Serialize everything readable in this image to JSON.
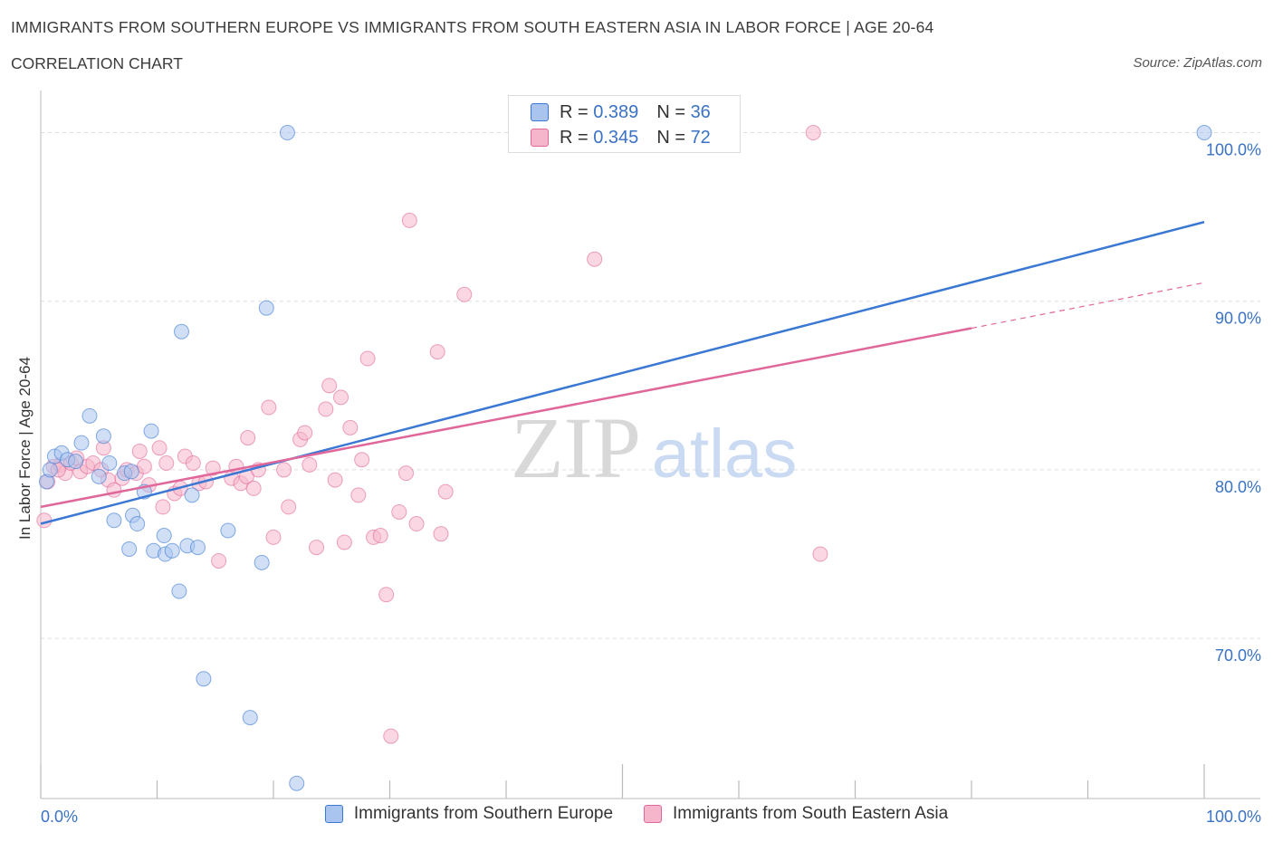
{
  "header": {
    "title": "IMMIGRANTS FROM SOUTHERN EUROPE VS IMMIGRANTS FROM SOUTH EASTERN ASIA IN LABOR FORCE | AGE 20-64",
    "subtitle": "CORRELATION CHART",
    "source": "Source: ZipAtlas.com"
  },
  "watermark": {
    "zip": "ZIP",
    "atlas": "atlas"
  },
  "colors": {
    "blue": "#3a78d4",
    "blue_fill": "#a9c5ef",
    "pink": "#e0679a",
    "pink_fill": "#f5b6cb",
    "axis_label": "#3a72c4",
    "grid": "#dddddd"
  },
  "legend": {
    "rows": [
      {
        "r_label": "R = ",
        "r_value": "0.389",
        "n_label": "N = ",
        "n_value": "36"
      },
      {
        "r_label": "R = ",
        "r_value": "0.345",
        "n_label": "N = ",
        "n_value": "72"
      }
    ]
  },
  "chart_data": {
    "type": "scatter",
    "title": "IMMIGRANTS FROM SOUTHERN EUROPE VS IMMIGRANTS FROM SOUTH EASTERN ASIA IN LABOR FORCE | AGE 20-64",
    "subtitle": "CORRELATION CHART",
    "xlabel": "",
    "ylabel": "In Labor Force | Age 20-64",
    "xlim": [
      0,
      100
    ],
    "ylim": [
      60.5,
      102.5
    ],
    "x_tick_labels": [
      "0.0%",
      "100.0%"
    ],
    "y_ticks": [
      70,
      80,
      90,
      100
    ],
    "y_tick_labels": [
      "70.0%",
      "80.0%",
      "90.0%",
      "100.0%"
    ],
    "grid": true,
    "legend_position": "top-center",
    "series": [
      {
        "name": "Immigrants from Southern Europe",
        "R": 0.389,
        "N": 36,
        "trend": {
          "x0": 0,
          "y0": 76.8,
          "x1": 100,
          "y1": 94.7
        },
        "points": [
          [
            0.5,
            79.3
          ],
          [
            0.8,
            80.0
          ],
          [
            1.2,
            80.8
          ],
          [
            1.8,
            81.0
          ],
          [
            2.3,
            80.6
          ],
          [
            3.0,
            80.5
          ],
          [
            3.5,
            81.6
          ],
          [
            4.2,
            83.2
          ],
          [
            5.0,
            79.6
          ],
          [
            5.4,
            82.0
          ],
          [
            5.9,
            80.4
          ],
          [
            6.3,
            77.0
          ],
          [
            7.2,
            79.8
          ],
          [
            7.6,
            75.3
          ],
          [
            7.8,
            79.9
          ],
          [
            7.9,
            77.3
          ],
          [
            8.3,
            76.8
          ],
          [
            8.9,
            78.7
          ],
          [
            9.5,
            82.3
          ],
          [
            9.7,
            75.2
          ],
          [
            10.6,
            76.1
          ],
          [
            10.7,
            75.0
          ],
          [
            11.3,
            75.2
          ],
          [
            11.9,
            72.8
          ],
          [
            12.1,
            88.2
          ],
          [
            12.6,
            75.5
          ],
          [
            13.0,
            78.5
          ],
          [
            13.5,
            75.4
          ],
          [
            14.0,
            67.6
          ],
          [
            16.1,
            76.4
          ],
          [
            18.0,
            65.3
          ],
          [
            19.0,
            74.5
          ],
          [
            19.4,
            89.6
          ],
          [
            21.2,
            100.0
          ],
          [
            22.0,
            61.4
          ],
          [
            100.0,
            100.0
          ]
        ]
      },
      {
        "name": "Immigrants from South Eastern Asia",
        "R": 0.345,
        "N": 72,
        "trend": {
          "x0": 0,
          "y0": 77.8,
          "x1": 80,
          "y1": 88.4
        },
        "trend_extension": {
          "x0": 80,
          "y0": 88.4,
          "x1": 100,
          "y1": 91.1
        },
        "points": [
          [
            0.3,
            77.0
          ],
          [
            0.6,
            79.3
          ],
          [
            1.1,
            80.2
          ],
          [
            1.7,
            80.3
          ],
          [
            2.1,
            79.8
          ],
          [
            2.6,
            80.4
          ],
          [
            3.1,
            80.7
          ],
          [
            3.4,
            79.9
          ],
          [
            4.0,
            80.2
          ],
          [
            4.5,
            80.4
          ],
          [
            5.2,
            80.0
          ],
          [
            5.4,
            81.3
          ],
          [
            5.8,
            79.4
          ],
          [
            6.3,
            78.8
          ],
          [
            7.0,
            79.5
          ],
          [
            7.4,
            80.0
          ],
          [
            8.2,
            79.8
          ],
          [
            8.5,
            81.1
          ],
          [
            8.9,
            80.2
          ],
          [
            9.3,
            79.1
          ],
          [
            10.2,
            81.3
          ],
          [
            10.5,
            77.8
          ],
          [
            10.8,
            80.4
          ],
          [
            11.5,
            78.6
          ],
          [
            12.0,
            78.9
          ],
          [
            12.4,
            80.8
          ],
          [
            13.1,
            80.4
          ],
          [
            13.6,
            79.2
          ],
          [
            14.2,
            79.3
          ],
          [
            14.8,
            80.1
          ],
          [
            15.3,
            74.6
          ],
          [
            16.4,
            79.5
          ],
          [
            16.8,
            80.2
          ],
          [
            17.2,
            79.2
          ],
          [
            17.7,
            79.6
          ],
          [
            17.8,
            81.9
          ],
          [
            18.3,
            78.9
          ],
          [
            18.7,
            80.0
          ],
          [
            19.6,
            83.7
          ],
          [
            20.0,
            76.0
          ],
          [
            20.9,
            80.0
          ],
          [
            21.3,
            77.8
          ],
          [
            22.3,
            81.8
          ],
          [
            22.7,
            82.2
          ],
          [
            23.1,
            80.3
          ],
          [
            23.7,
            75.4
          ],
          [
            24.5,
            83.6
          ],
          [
            24.8,
            85.0
          ],
          [
            25.3,
            79.4
          ],
          [
            25.8,
            84.3
          ],
          [
            26.1,
            75.7
          ],
          [
            26.6,
            82.5
          ],
          [
            27.3,
            78.5
          ],
          [
            27.6,
            80.6
          ],
          [
            28.1,
            86.6
          ],
          [
            28.6,
            76.0
          ],
          [
            29.2,
            76.1
          ],
          [
            29.7,
            72.6
          ],
          [
            30.1,
            64.2
          ],
          [
            30.8,
            77.5
          ],
          [
            31.4,
            79.8
          ],
          [
            31.7,
            94.8
          ],
          [
            32.3,
            76.8
          ],
          [
            34.1,
            87.0
          ],
          [
            34.4,
            76.2
          ],
          [
            34.8,
            78.7
          ],
          [
            36.4,
            90.4
          ],
          [
            47.6,
            92.5
          ],
          [
            49.0,
            100.3
          ],
          [
            66.4,
            100.0
          ],
          [
            67.0,
            75.0
          ],
          [
            1.5,
            80.0
          ]
        ]
      }
    ]
  }
}
